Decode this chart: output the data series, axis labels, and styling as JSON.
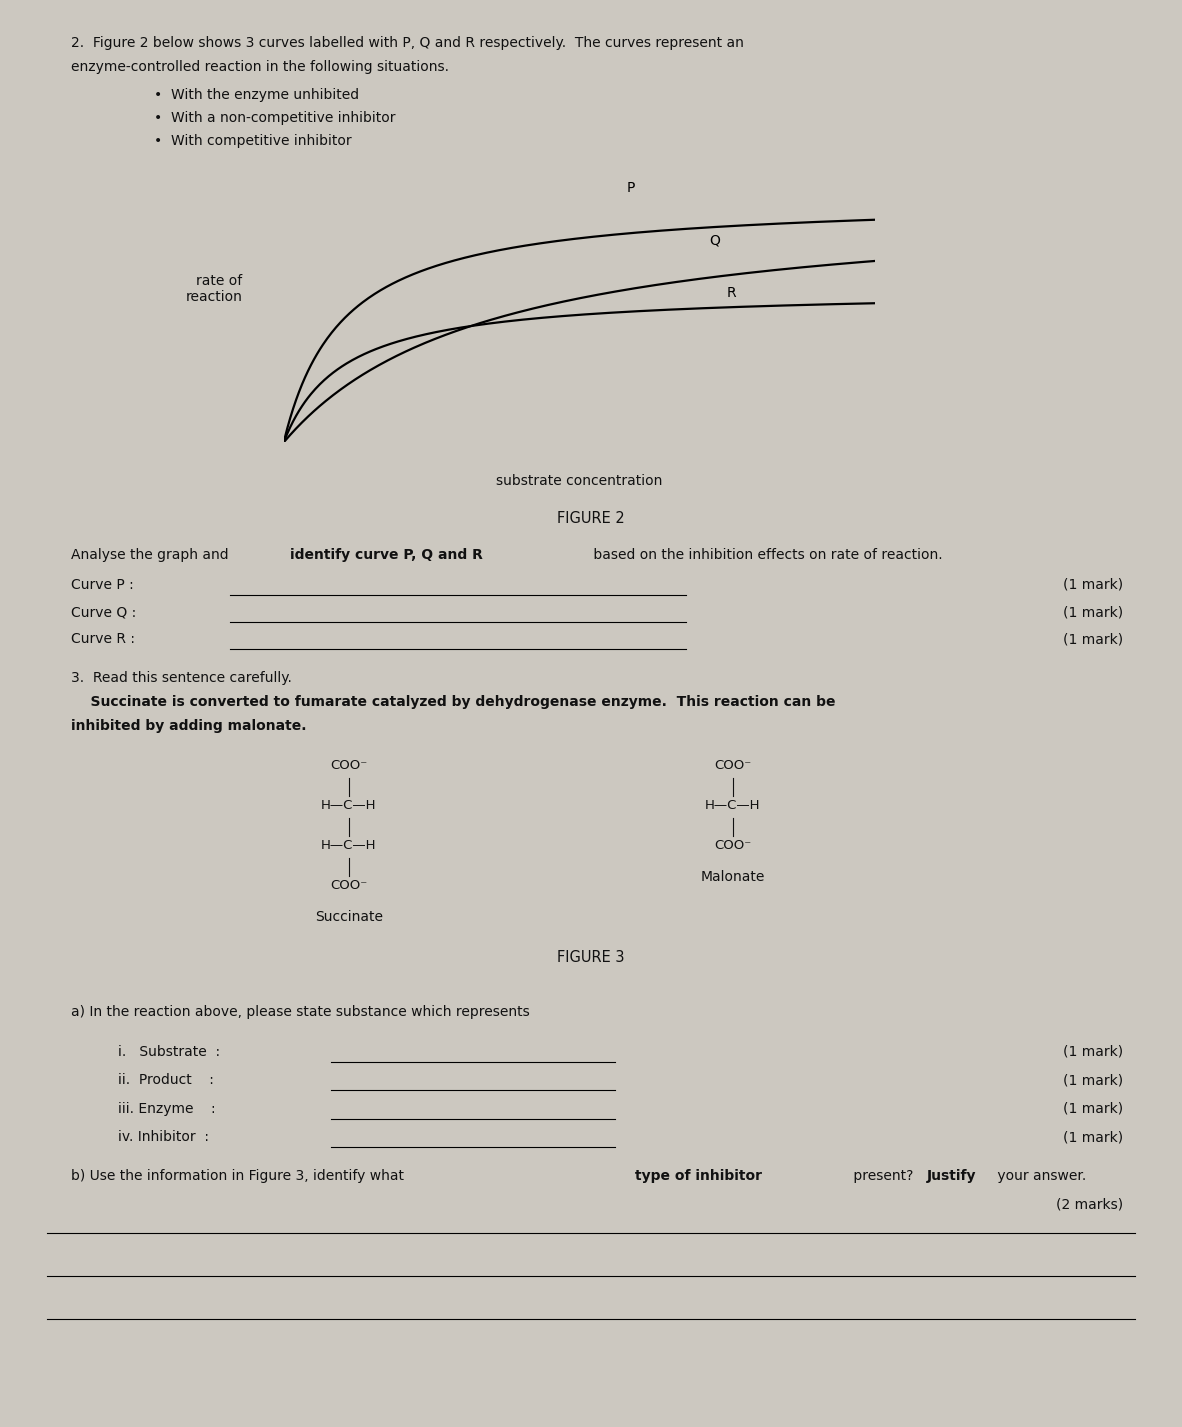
{
  "bg_color": "#ccc8c0",
  "text_color": "#111111",
  "fig_width": 11.82,
  "fig_height": 14.27,
  "question2_header_1": "2.  Figure 2 below shows 3 curves labelled with P, Q and R respectively.  The curves represent an",
  "question2_header_2": "enzyme-controlled reaction in the following situations.",
  "bullets": [
    "With the enzyme unhibited",
    "With a non-competitive inhibitor",
    "With competitive inhibitor"
  ],
  "figure2_label": "FIGURE 2",
  "analyse_text_normal": "Analyse the graph and identify curve P, Q and R based on the inhibition effects on rate of reaction.",
  "curve_labels": [
    "Curve P :",
    "Curve Q :",
    "Curve R :"
  ],
  "mark_labels": [
    "(1 mark)",
    "(1 mark)",
    "(1 mark)"
  ],
  "q3_header": "3.  Read this sentence carefully.",
  "q3_bold_line1": "    Succinate is converted to fumarate catalyzed by dehydrogenase enzyme.  This reaction can be",
  "q3_bold_line2": "inhibited by adding malonate.",
  "figure3_label": "FIGURE 3",
  "succinate_label": "Succinate",
  "malonate_label": "Malonate",
  "qa_header": "a) In the reaction above, please state substance which represents",
  "qa_items": [
    "i.   Substrate  :",
    "ii.  Product    :",
    "iii. Enzyme    :",
    "iv. Inhibitor  :"
  ],
  "qa_marks": [
    "(1 mark)",
    "(1 mark)",
    "(1 mark)",
    "(1 mark)"
  ],
  "qb_marks": "(2 marks)",
  "ylabel": "rate of\nreaction",
  "xlabel": "substrate concentration"
}
